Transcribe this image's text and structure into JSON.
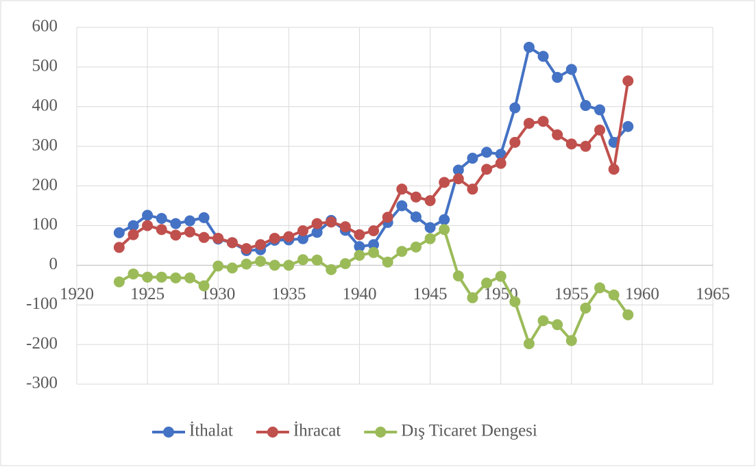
{
  "chart_data": {
    "type": "line",
    "x": [
      1923,
      1924,
      1925,
      1926,
      1927,
      1928,
      1929,
      1930,
      1931,
      1932,
      1933,
      1934,
      1935,
      1936,
      1937,
      1938,
      1939,
      1940,
      1941,
      1942,
      1943,
      1944,
      1945,
      1946,
      1947,
      1948,
      1949,
      1950,
      1951,
      1952,
      1953,
      1954,
      1955,
      1956,
      1957,
      1958,
      1959
    ],
    "series": [
      {
        "name": "İthalat",
        "color": "#4472c4",
        "values": [
          82,
          100,
          126,
          118,
          105,
          112,
          120,
          66,
          57,
          37,
          39,
          63,
          64,
          67,
          83,
          113,
          88,
          47,
          52,
          108,
          150,
          122,
          95,
          115,
          240,
          270,
          285,
          280,
          397,
          550,
          527,
          474,
          494,
          403,
          392,
          310,
          350
        ]
      },
      {
        "name": "İhracat",
        "color": "#c0504d",
        "values": [
          45,
          77,
          100,
          90,
          76,
          84,
          70,
          68,
          57,
          42,
          52,
          68,
          72,
          87,
          105,
          109,
          97,
          77,
          87,
          121,
          192,
          172,
          163,
          209,
          218,
          192,
          242,
          257,
          310,
          358,
          363,
          329,
          306,
          300,
          341,
          242,
          465
        ]
      },
      {
        "name": "Dış Ticaret Dengesi",
        "color": "#9bbb59",
        "values": [
          -42,
          -22,
          -30,
          -30,
          -32,
          -32,
          -52,
          -2,
          -7,
          3,
          10,
          0,
          0,
          14,
          13,
          -11,
          4,
          25,
          32,
          8,
          35,
          46,
          67,
          90,
          -27,
          -82,
          -45,
          -28,
          -92,
          -198,
          -140,
          -150,
          -190,
          -108,
          -57,
          -75,
          -125
        ]
      }
    ],
    "xlim": [
      1920,
      1965
    ],
    "xticks": [
      1920,
      1925,
      1930,
      1935,
      1940,
      1945,
      1950,
      1955,
      1960,
      1965
    ],
    "ylim": [
      -300,
      600
    ],
    "yticks": [
      -300,
      -200,
      -100,
      0,
      100,
      200,
      300,
      400,
      500,
      600
    ],
    "grid": true,
    "legend": "bottom"
  }
}
